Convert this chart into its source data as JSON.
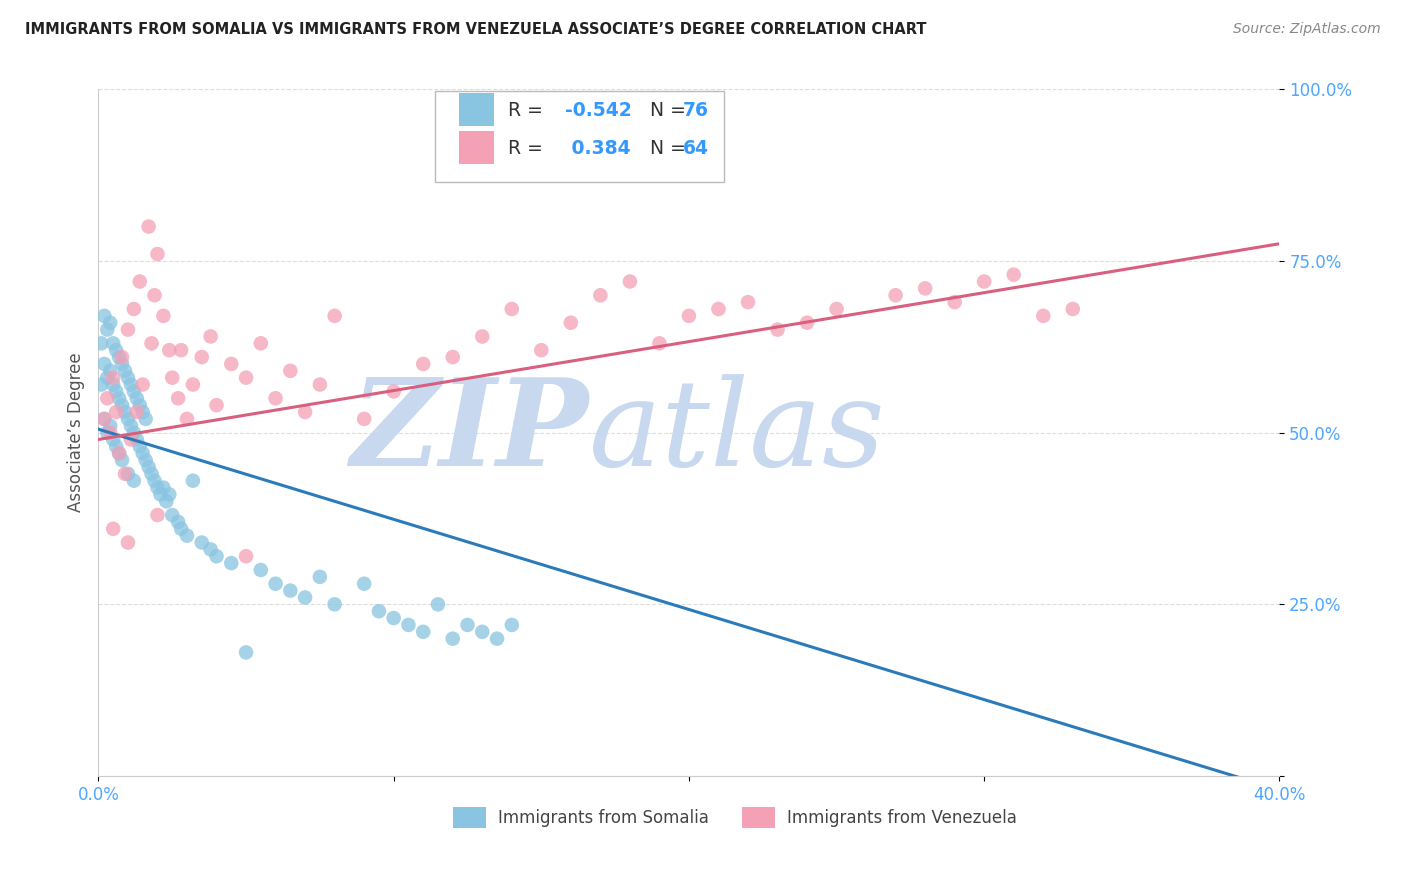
{
  "title": "IMMIGRANTS FROM SOMALIA VS IMMIGRANTS FROM VENEZUELA ASSOCIATE’S DEGREE CORRELATION CHART",
  "source": "Source: ZipAtlas.com",
  "xlabel_somalia": "Immigrants from Somalia",
  "xlabel_venezuela": "Immigrants from Venezuela",
  "ylabel": "Associate’s Degree",
  "r_somalia": -0.542,
  "n_somalia": 76,
  "r_venezuela": 0.384,
  "n_venezuela": 64,
  "xlim": [
    0.0,
    0.4
  ],
  "ylim": [
    0.0,
    1.0
  ],
  "color_somalia": "#89c4e1",
  "color_venezuela": "#f4a0b5",
  "line_color_somalia": "#2b7bba",
  "line_color_venezuela": "#d95f7f",
  "watermark_zip": "ZIP",
  "watermark_atlas": "atlas",
  "watermark_color_zip": "#c8d8ee",
  "watermark_color_atlas": "#c8d8ee",
  "legend_r_color": "#3399ff",
  "legend_n_color": "#3399ff",
  "legend_text_color": "#333333",
  "axis_tick_color": "#4da6ff",
  "ylabel_color": "#555555",
  "title_color": "#222222",
  "source_color": "#888888",
  "grid_color": "#dddddd",
  "spine_color": "#cccccc",
  "som_line_x0": 0.0,
  "som_line_y0": 0.505,
  "som_line_x1": 0.4,
  "som_line_y1": -0.02,
  "ven_line_x0": 0.0,
  "ven_line_y0": 0.49,
  "ven_line_x1": 0.4,
  "ven_line_y1": 0.775,
  "somalia_x": [
    0.001,
    0.001,
    0.002,
    0.002,
    0.002,
    0.003,
    0.003,
    0.003,
    0.004,
    0.004,
    0.004,
    0.005,
    0.005,
    0.005,
    0.006,
    0.006,
    0.006,
    0.007,
    0.007,
    0.007,
    0.008,
    0.008,
    0.008,
    0.009,
    0.009,
    0.01,
    0.01,
    0.01,
    0.011,
    0.011,
    0.012,
    0.012,
    0.012,
    0.013,
    0.013,
    0.014,
    0.014,
    0.015,
    0.015,
    0.016,
    0.016,
    0.017,
    0.018,
    0.019,
    0.02,
    0.021,
    0.022,
    0.023,
    0.024,
    0.025,
    0.027,
    0.028,
    0.03,
    0.032,
    0.035,
    0.038,
    0.04,
    0.045,
    0.05,
    0.055,
    0.06,
    0.065,
    0.07,
    0.075,
    0.08,
    0.09,
    0.095,
    0.1,
    0.105,
    0.11,
    0.115,
    0.12,
    0.125,
    0.13,
    0.135,
    0.14
  ],
  "somalia_y": [
    0.57,
    0.63,
    0.52,
    0.6,
    0.67,
    0.5,
    0.58,
    0.65,
    0.51,
    0.59,
    0.66,
    0.49,
    0.57,
    0.63,
    0.48,
    0.56,
    0.62,
    0.47,
    0.55,
    0.61,
    0.46,
    0.54,
    0.6,
    0.53,
    0.59,
    0.44,
    0.52,
    0.58,
    0.51,
    0.57,
    0.43,
    0.5,
    0.56,
    0.49,
    0.55,
    0.48,
    0.54,
    0.47,
    0.53,
    0.46,
    0.52,
    0.45,
    0.44,
    0.43,
    0.42,
    0.41,
    0.42,
    0.4,
    0.41,
    0.38,
    0.37,
    0.36,
    0.35,
    0.43,
    0.34,
    0.33,
    0.32,
    0.31,
    0.18,
    0.3,
    0.28,
    0.27,
    0.26,
    0.29,
    0.25,
    0.28,
    0.24,
    0.23,
    0.22,
    0.21,
    0.25,
    0.2,
    0.22,
    0.21,
    0.2,
    0.22
  ],
  "venezuela_x": [
    0.002,
    0.003,
    0.004,
    0.005,
    0.006,
    0.007,
    0.008,
    0.009,
    0.01,
    0.011,
    0.012,
    0.013,
    0.014,
    0.015,
    0.017,
    0.018,
    0.019,
    0.02,
    0.022,
    0.024,
    0.025,
    0.027,
    0.028,
    0.03,
    0.032,
    0.035,
    0.038,
    0.04,
    0.045,
    0.05,
    0.055,
    0.06,
    0.065,
    0.07,
    0.075,
    0.08,
    0.09,
    0.1,
    0.11,
    0.12,
    0.13,
    0.14,
    0.15,
    0.16,
    0.17,
    0.18,
    0.19,
    0.2,
    0.21,
    0.22,
    0.23,
    0.24,
    0.25,
    0.27,
    0.28,
    0.29,
    0.3,
    0.31,
    0.32,
    0.33,
    0.005,
    0.01,
    0.02,
    0.05
  ],
  "venezuela_y": [
    0.52,
    0.55,
    0.5,
    0.58,
    0.53,
    0.47,
    0.61,
    0.44,
    0.65,
    0.49,
    0.68,
    0.53,
    0.72,
    0.57,
    0.8,
    0.63,
    0.7,
    0.76,
    0.67,
    0.62,
    0.58,
    0.55,
    0.62,
    0.52,
    0.57,
    0.61,
    0.64,
    0.54,
    0.6,
    0.58,
    0.63,
    0.55,
    0.59,
    0.53,
    0.57,
    0.67,
    0.52,
    0.56,
    0.6,
    0.61,
    0.64,
    0.68,
    0.62,
    0.66,
    0.7,
    0.72,
    0.63,
    0.67,
    0.68,
    0.69,
    0.65,
    0.66,
    0.68,
    0.7,
    0.71,
    0.69,
    0.72,
    0.73,
    0.67,
    0.68,
    0.36,
    0.34,
    0.38,
    0.32
  ]
}
